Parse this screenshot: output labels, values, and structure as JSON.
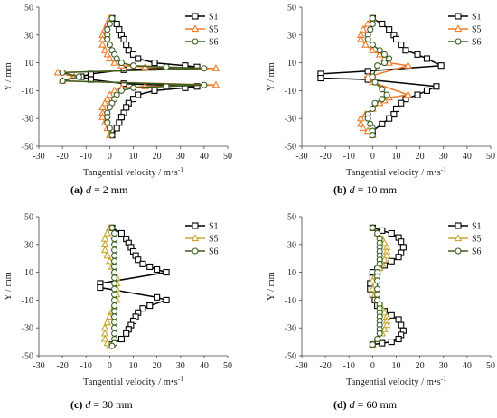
{
  "colors": {
    "S1": "#000000",
    "S5": "#f07c2b",
    "S5_light": "#c8a632",
    "S6": "#3a5e22"
  },
  "chart_data": [
    {
      "id": "a",
      "type": "line",
      "caption_label": "(a)",
      "caption_var": "d",
      "caption_rest": " = 2 mm",
      "xlabel": "Tangential velocity / m•s",
      "xlabel_sup": "-1",
      "ylabel": "Y / mm",
      "xlim": [
        -30,
        50
      ],
      "ylim": [
        -50,
        50
      ],
      "xticks": [
        -30,
        -20,
        -10,
        0,
        10,
        20,
        30,
        40,
        50
      ],
      "yticks": [
        -50,
        -30,
        -10,
        10,
        30,
        50
      ],
      "legend": [
        "S1",
        "S5",
        "S6"
      ],
      "series": [
        {
          "name": "S1",
          "color": "#000000",
          "marker": "square",
          "x": [
            1,
            3,
            4,
            5,
            6,
            7,
            8,
            10,
            12,
            19,
            32,
            37,
            6,
            -8,
            -12,
            -8,
            6,
            37,
            32,
            19,
            12,
            10,
            8,
            7,
            6,
            5,
            4,
            3,
            1
          ],
          "y": [
            42,
            38,
            34,
            30,
            27,
            23,
            19,
            16,
            13,
            10,
            8,
            7,
            5,
            2,
            0,
            -2,
            -5,
            -7,
            -8,
            -10,
            -13,
            -16,
            -19,
            -22,
            -26,
            -29,
            -33,
            -37,
            -42
          ]
        },
        {
          "name": "S5",
          "color": "#f07c2b",
          "marker": "triangle",
          "x": [
            0,
            -1,
            -2,
            -3,
            -3,
            -3,
            -2,
            -1,
            0,
            2,
            5,
            15,
            45,
            -22,
            -15,
            -20,
            45,
            15,
            5,
            2,
            0,
            -1,
            -2,
            -3,
            -3,
            -3,
            -2,
            -1,
            0
          ],
          "y": [
            42,
            38,
            34,
            30,
            27,
            23,
            19,
            16,
            13,
            10,
            8,
            7,
            6,
            3,
            0,
            -3,
            -6,
            -7,
            -8,
            -10,
            -13,
            -16,
            -19,
            -22,
            -26,
            -29,
            -33,
            -37,
            -42
          ]
        },
        {
          "name": "S6",
          "color": "#3a5e22",
          "marker": "circle",
          "x": [
            1,
            0,
            -1,
            -1,
            -1,
            0,
            1,
            2,
            3,
            5,
            10,
            24,
            40,
            -20,
            -13,
            -20,
            40,
            24,
            10,
            5,
            3,
            2,
            1,
            0,
            -1,
            -1,
            -1,
            0,
            1
          ],
          "y": [
            42,
            38,
            34,
            30,
            27,
            23,
            19,
            16,
            13,
            10,
            8,
            7,
            6,
            3,
            0,
            -3,
            -6,
            -7,
            -8,
            -10,
            -13,
            -16,
            -19,
            -22,
            -26,
            -29,
            -33,
            -37,
            -42
          ]
        }
      ]
    },
    {
      "id": "b",
      "type": "line",
      "caption_label": "(b)",
      "caption_var": "d",
      "caption_rest": " = 10 mm",
      "xlabel": "Tangential velocity / m•s",
      "xlabel_sup": "-1",
      "ylabel": "Y / mm",
      "xlim": [
        -30,
        50
      ],
      "ylim": [
        -50,
        50
      ],
      "xticks": [
        -30,
        -20,
        -10,
        0,
        10,
        20,
        30,
        40,
        50
      ],
      "yticks": [
        -50,
        -30,
        -10,
        10,
        30,
        50
      ],
      "legend": [
        "S1",
        "S5",
        "S6"
      ],
      "series": [
        {
          "name": "S1",
          "color": "#000000",
          "marker": "square",
          "x": [
            0,
            4,
            7,
            9,
            10,
            12,
            14,
            19,
            23,
            29,
            -2,
            -22,
            -22,
            -2,
            27,
            23,
            19,
            14,
            12,
            10,
            9,
            7,
            4,
            0
          ],
          "y": [
            42,
            38,
            34,
            30,
            27,
            23,
            19,
            16,
            13,
            8,
            4,
            2,
            -1,
            -2,
            -7,
            -10,
            -13,
            -16,
            -19,
            -23,
            -27,
            -30,
            -34,
            -39
          ],
          "x_tail": [],
          "y_tail": []
        },
        {
          "name": "S5",
          "color": "#f07c2b",
          "marker": "triangle",
          "x": [
            0,
            -2,
            -4,
            -5,
            -5,
            -3,
            0,
            3,
            5,
            7,
            15,
            -2,
            0,
            15,
            7,
            5,
            3,
            0,
            -3,
            -5,
            -5,
            -4,
            -2,
            0
          ],
          "y": [
            42,
            38,
            34,
            30,
            27,
            23,
            19,
            16,
            13,
            10,
            8,
            0,
            -4,
            -13,
            -15,
            -17,
            -19,
            -23,
            -27,
            -30,
            -34,
            -37,
            -39,
            -42
          ]
        },
        {
          "name": "S6",
          "color": "#3a5e22",
          "marker": "circle",
          "x": [
            0,
            0,
            -1,
            -2,
            -2,
            0,
            3,
            5,
            7,
            5,
            2,
            0,
            1,
            4,
            6,
            4,
            1,
            0,
            -2,
            -2,
            -1,
            0,
            0,
            0
          ],
          "y": [
            42,
            38,
            34,
            30,
            27,
            23,
            19,
            16,
            13,
            10,
            8,
            0,
            -4,
            -9,
            -13,
            -16,
            -19,
            -23,
            -27,
            -30,
            -34,
            -37,
            -39,
            -42
          ]
        }
      ]
    },
    {
      "id": "c",
      "type": "line",
      "caption_label": "(c)",
      "caption_var": "d",
      "caption_rest": " = 30 mm",
      "xlabel": "Tangential velocity / m•s",
      "xlabel_sup": "-1",
      "ylabel": "Y / mm",
      "xlim": [
        -30,
        50
      ],
      "ylim": [
        -50,
        50
      ],
      "xticks": [
        -30,
        -20,
        -10,
        0,
        10,
        20,
        30,
        40,
        50
      ],
      "yticks": [
        -50,
        -30,
        -10,
        10,
        30,
        50
      ],
      "legend": [
        "S1",
        "S5",
        "S6"
      ],
      "series": [
        {
          "name": "S1",
          "color": "#000000",
          "marker": "square",
          "x": [
            1,
            5,
            7,
            8,
            9,
            10,
            11,
            12,
            14,
            17,
            20,
            24,
            -4,
            -4,
            20,
            24,
            17,
            14,
            12,
            11,
            10,
            9,
            8,
            7,
            5,
            1
          ],
          "y": [
            42,
            38,
            34,
            31,
            28,
            25,
            22,
            19,
            16,
            14,
            12,
            10,
            2,
            -1,
            -8,
            -10,
            -14,
            -16,
            -19,
            -22,
            -25,
            -28,
            -31,
            -34,
            -38,
            -42
          ],
          "x_tail": [],
          "y_tail": []
        },
        {
          "name": "S5",
          "color": "#c8a632",
          "marker": "triangle",
          "x": [
            0,
            -1,
            -2,
            -2,
            -2,
            -1,
            0,
            1,
            2,
            3,
            3,
            3,
            3,
            3,
            2,
            1,
            0,
            -1,
            -2,
            -2,
            -2,
            -1,
            0
          ],
          "y": [
            42,
            38,
            34,
            30,
            26,
            22,
            18,
            14,
            10,
            6,
            2,
            -2,
            -6,
            -10,
            -14,
            -18,
            -22,
            -26,
            -30,
            -34,
            -38,
            -41,
            -43
          ]
        },
        {
          "name": "S6",
          "color": "#3a5e22",
          "marker": "circle",
          "x": [
            1,
            2,
            2,
            2,
            2,
            2,
            2,
            2,
            2,
            2,
            2,
            2,
            2,
            2,
            2,
            2,
            2,
            2,
            2,
            2,
            2,
            2,
            1
          ],
          "y": [
            42,
            38,
            34,
            30,
            26,
            22,
            18,
            14,
            10,
            6,
            2,
            -2,
            -6,
            -10,
            -14,
            -18,
            -22,
            -26,
            -30,
            -34,
            -38,
            -41,
            -43
          ]
        }
      ]
    },
    {
      "id": "d",
      "type": "line",
      "caption_label": "(d)",
      "caption_var": "d",
      "caption_rest": " = 60 mm",
      "xlabel": "Tangential velocity / m•s",
      "xlabel_sup": "-1",
      "ylabel": "Y / mm",
      "xlim": [
        -30,
        50
      ],
      "ylim": [
        -50,
        50
      ],
      "xticks": [
        -30,
        -20,
        -10,
        0,
        10,
        20,
        30,
        40,
        50
      ],
      "yticks": [
        -50,
        -30,
        -10,
        10,
        30,
        50
      ],
      "legend": [
        "S1",
        "S5",
        "S6"
      ],
      "series": [
        {
          "name": "S1",
          "color": "#000000",
          "marker": "square",
          "x": [
            0,
            4,
            8,
            11,
            12,
            13,
            12,
            11,
            8,
            5,
            2,
            0,
            0,
            -1,
            -1,
            0,
            1,
            2,
            5,
            8,
            11,
            12,
            13,
            12,
            11,
            8,
            4,
            0
          ],
          "y": [
            42,
            40,
            38,
            35,
            32,
            28,
            24,
            21,
            18,
            15,
            12,
            10,
            6,
            2,
            -2,
            -6,
            -10,
            -14,
            -18,
            -21,
            -24,
            -28,
            -32,
            -35,
            -38,
            -40,
            -41,
            -42
          ]
        },
        {
          "name": "S5",
          "color": "#c8a632",
          "marker": "triangle",
          "x": [
            0,
            2,
            4,
            5,
            6,
            6,
            6,
            5,
            4,
            3,
            2,
            1,
            0,
            0,
            1,
            2,
            3,
            4,
            5,
            6,
            6,
            6,
            5,
            4,
            2,
            0
          ],
          "y": [
            42,
            38,
            34,
            31,
            28,
            25,
            22,
            19,
            16,
            13,
            10,
            7,
            4,
            -2,
            -6,
            -10,
            -13,
            -16,
            -19,
            -22,
            -25,
            -28,
            -31,
            -34,
            -38,
            -42
          ]
        },
        {
          "name": "S6",
          "color": "#3a5e22",
          "marker": "circle",
          "x": [
            0,
            2,
            3,
            3,
            3,
            3,
            3,
            3,
            3,
            2,
            2,
            2,
            2,
            2,
            2,
            2,
            3,
            3,
            3,
            3,
            3,
            3,
            3,
            3,
            2,
            0
          ],
          "y": [
            42,
            38,
            34,
            31,
            28,
            25,
            22,
            19,
            16,
            13,
            10,
            7,
            4,
            -2,
            -6,
            -10,
            -13,
            -16,
            -19,
            -22,
            -25,
            -28,
            -31,
            -34,
            -38,
            -42
          ]
        }
      ]
    }
  ]
}
